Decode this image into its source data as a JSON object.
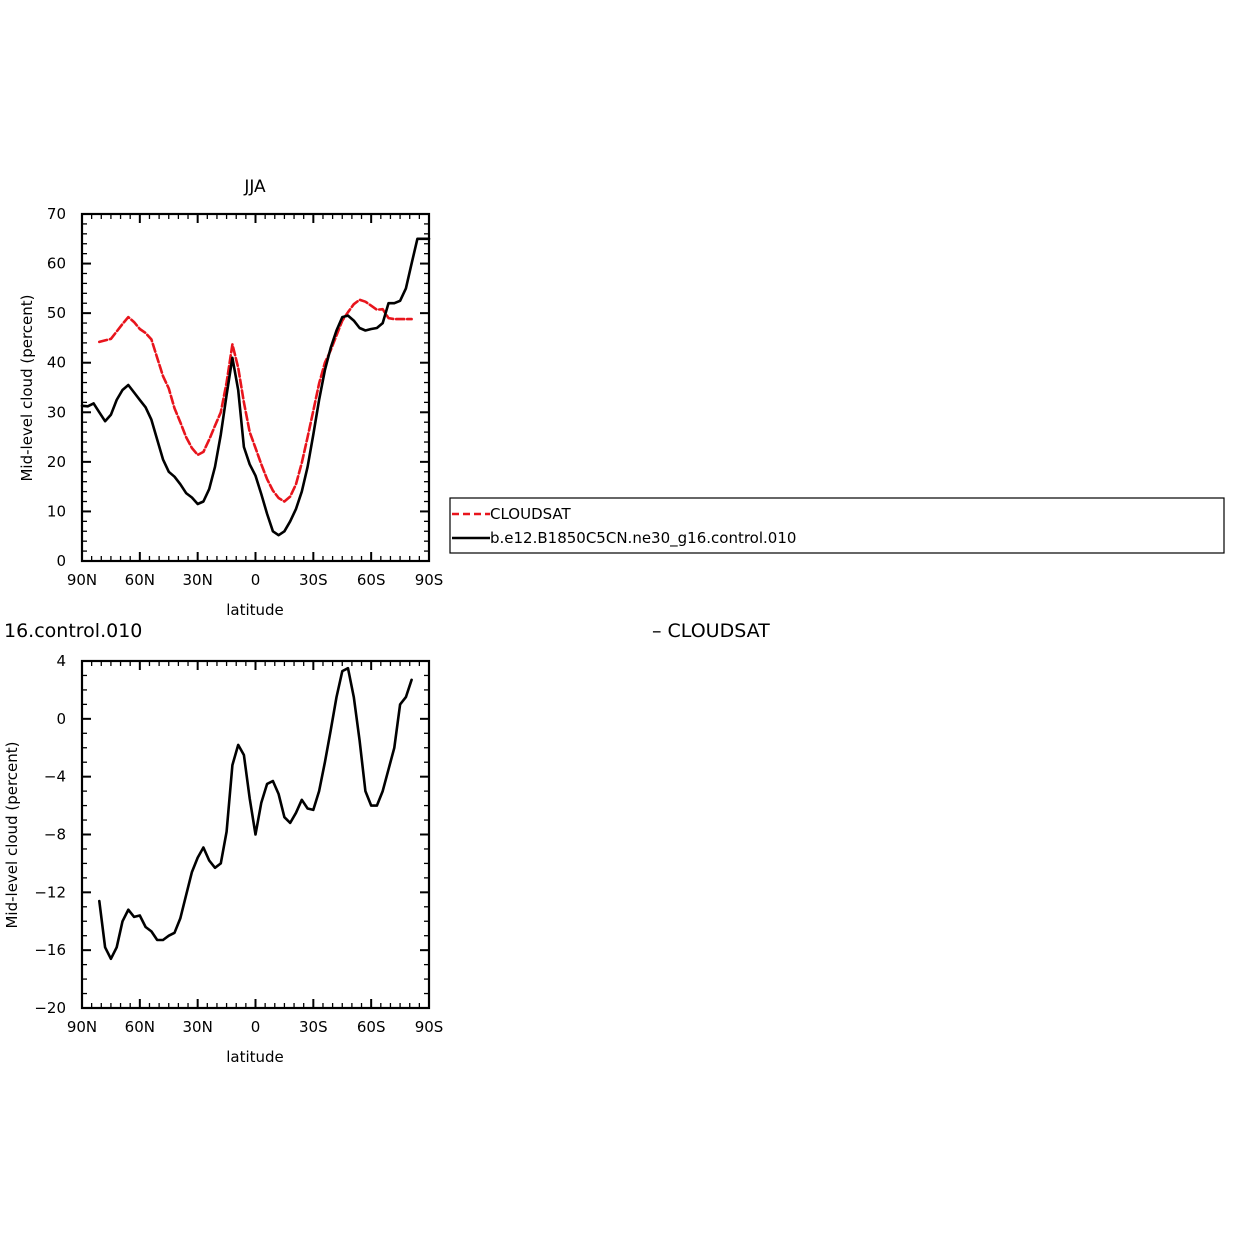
{
  "chart_data": [
    {
      "type": "line",
      "title": "JJA",
      "xlabel": "latitude",
      "ylabel": "Mid-level cloud (percent)",
      "xlim": [
        90,
        -90
      ],
      "ylim": [
        0,
        70
      ],
      "x_ticks": [
        {
          "value": 90,
          "label": "90N"
        },
        {
          "value": 60,
          "label": "60N"
        },
        {
          "value": 30,
          "label": "30N"
        },
        {
          "value": 0,
          "label": "0"
        },
        {
          "value": -30,
          "label": "30S"
        },
        {
          "value": -60,
          "label": "60S"
        },
        {
          "value": -90,
          "label": "90S"
        }
      ],
      "y_ticks": [
        {
          "value": 0,
          "label": "0"
        },
        {
          "value": 10,
          "label": "10"
        },
        {
          "value": 20,
          "label": "20"
        },
        {
          "value": 30,
          "label": "30"
        },
        {
          "value": 40,
          "label": "40"
        },
        {
          "value": 50,
          "label": "50"
        },
        {
          "value": 60,
          "label": "60"
        },
        {
          "value": 70,
          "label": "70"
        }
      ],
      "legend_position": "right",
      "series": [
        {
          "name": "CLOUDSAT",
          "color": "#e8141c",
          "dash": true,
          "x": [
            81,
            78,
            75,
            72,
            69,
            66,
            63,
            60,
            57,
            54,
            51,
            48,
            45,
            42,
            39,
            36,
            33,
            30,
            27,
            24,
            21,
            18,
            15,
            12,
            9,
            6,
            3,
            0,
            -3,
            -6,
            -9,
            -12,
            -15,
            -18,
            -21,
            -24,
            -27,
            -30,
            -33,
            -36,
            -39,
            -42,
            -45,
            -48,
            -51,
            -54,
            -57,
            -60,
            -63,
            -66,
            -69,
            -72,
            -75,
            -78,
            -81
          ],
          "y": [
            44.2,
            44.5,
            44.8,
            46.3,
            47.8,
            49.2,
            48.2,
            46.8,
            46.0,
            44.7,
            41.0,
            37.3,
            34.8,
            30.8,
            28.0,
            25.0,
            22.8,
            21.4,
            22.0,
            24.5,
            27.3,
            30.0,
            36.0,
            43.7,
            39.0,
            32.0,
            26.0,
            22.8,
            19.5,
            16.5,
            14.2,
            12.7,
            12.0,
            13.0,
            15.5,
            19.8,
            25.0,
            30.3,
            35.8,
            40.0,
            42.5,
            45.5,
            48.5,
            50.2,
            51.8,
            52.7,
            52.3,
            51.5,
            50.7,
            50.8,
            49.0,
            48.8,
            48.8,
            48.8,
            48.8
          ]
        },
        {
          "name": "b.e12.B1850C5CN.ne30_g16.control.010",
          "color": "#000000",
          "dash": false,
          "x": [
            90,
            87,
            84,
            81,
            78,
            75,
            72,
            69,
            66,
            63,
            60,
            57,
            54,
            51,
            48,
            45,
            42,
            39,
            36,
            33,
            30,
            27,
            24,
            21,
            18,
            15,
            12,
            9,
            6,
            3,
            0,
            -3,
            -6,
            -9,
            -12,
            -15,
            -18,
            -21,
            -24,
            -27,
            -30,
            -33,
            -36,
            -39,
            -42,
            -45,
            -48,
            -51,
            -54,
            -57,
            -60,
            -63,
            -66,
            -69,
            -72,
            -75,
            -78,
            -81,
            -84,
            -87,
            -90
          ],
          "y": [
            31.3,
            31.2,
            31.8,
            30.0,
            28.2,
            29.5,
            32.5,
            34.5,
            35.5,
            34.0,
            32.5,
            31.0,
            28.5,
            24.5,
            20.5,
            18.0,
            17.0,
            15.5,
            13.7,
            12.8,
            11.5,
            12.0,
            14.5,
            19.0,
            25.5,
            33.5,
            41.0,
            34.5,
            23.0,
            19.5,
            17.2,
            13.5,
            9.5,
            6.0,
            5.2,
            6.0,
            8.0,
            10.5,
            14.0,
            19.0,
            25.5,
            32.5,
            38.5,
            43.0,
            46.5,
            49.2,
            49.5,
            48.5,
            47.0,
            46.5,
            46.8,
            47.0,
            48.0,
            52.0,
            52.0,
            52.5,
            55.0,
            60.0,
            65.0,
            65.0,
            65.0
          ]
        }
      ]
    },
    {
      "type": "line",
      "title": "16.control.010",
      "title_right": "– CLOUDSAT",
      "xlabel": "latitude",
      "ylabel": "Mid-level cloud (percent)",
      "xlim": [
        90,
        -90
      ],
      "ylim": [
        -20,
        4
      ],
      "x_ticks": [
        {
          "value": 90,
          "label": "90N"
        },
        {
          "value": 60,
          "label": "60N"
        },
        {
          "value": 30,
          "label": "30N"
        },
        {
          "value": 0,
          "label": "0"
        },
        {
          "value": -30,
          "label": "30S"
        },
        {
          "value": -60,
          "label": "60S"
        },
        {
          "value": -90,
          "label": "90S"
        }
      ],
      "y_ticks": [
        {
          "value": 4,
          "label": "4"
        },
        {
          "value": 0,
          "label": "0"
        },
        {
          "value": -4,
          "label": "−4"
        },
        {
          "value": -8,
          "label": "−8"
        },
        {
          "value": -12,
          "label": "−12"
        },
        {
          "value": -16,
          "label": "−16"
        },
        {
          "value": -20,
          "label": "−20"
        }
      ],
      "series": [
        {
          "color": "#000000",
          "dash": false,
          "x": [
            81,
            78,
            75,
            72,
            69,
            66,
            63,
            60,
            57,
            54,
            51,
            48,
            45,
            42,
            39,
            36,
            33,
            30,
            27,
            24,
            21,
            18,
            15,
            12,
            9,
            6,
            3,
            0,
            -3,
            -6,
            -9,
            -12,
            -15,
            -18,
            -21,
            -24,
            -27,
            -30,
            -33,
            -36,
            -39,
            -42,
            -45,
            -48,
            -51,
            -54,
            -57,
            -60,
            -63,
            -66,
            -69,
            -72,
            -75,
            -78,
            -81
          ],
          "y": [
            -12.6,
            -15.8,
            -16.6,
            -15.8,
            -14.0,
            -13.2,
            -13.7,
            -13.6,
            -14.4,
            -14.7,
            -15.3,
            -15.3,
            -15.0,
            -14.8,
            -13.8,
            -12.2,
            -10.6,
            -9.6,
            -8.9,
            -9.8,
            -10.3,
            -10.0,
            -7.8,
            -3.2,
            -1.8,
            -2.5,
            -5.5,
            -8.0,
            -5.8,
            -4.5,
            -4.3,
            -5.2,
            -6.8,
            -7.2,
            -6.5,
            -5.6,
            -6.2,
            -6.3,
            -5.0,
            -3.0,
            -0.8,
            1.5,
            3.3,
            3.5,
            1.5,
            -1.5,
            -5.0,
            -6.0,
            -6.0,
            -5.0,
            -3.5,
            -2.0,
            1.0,
            1.5,
            2.7
          ]
        }
      ]
    }
  ]
}
